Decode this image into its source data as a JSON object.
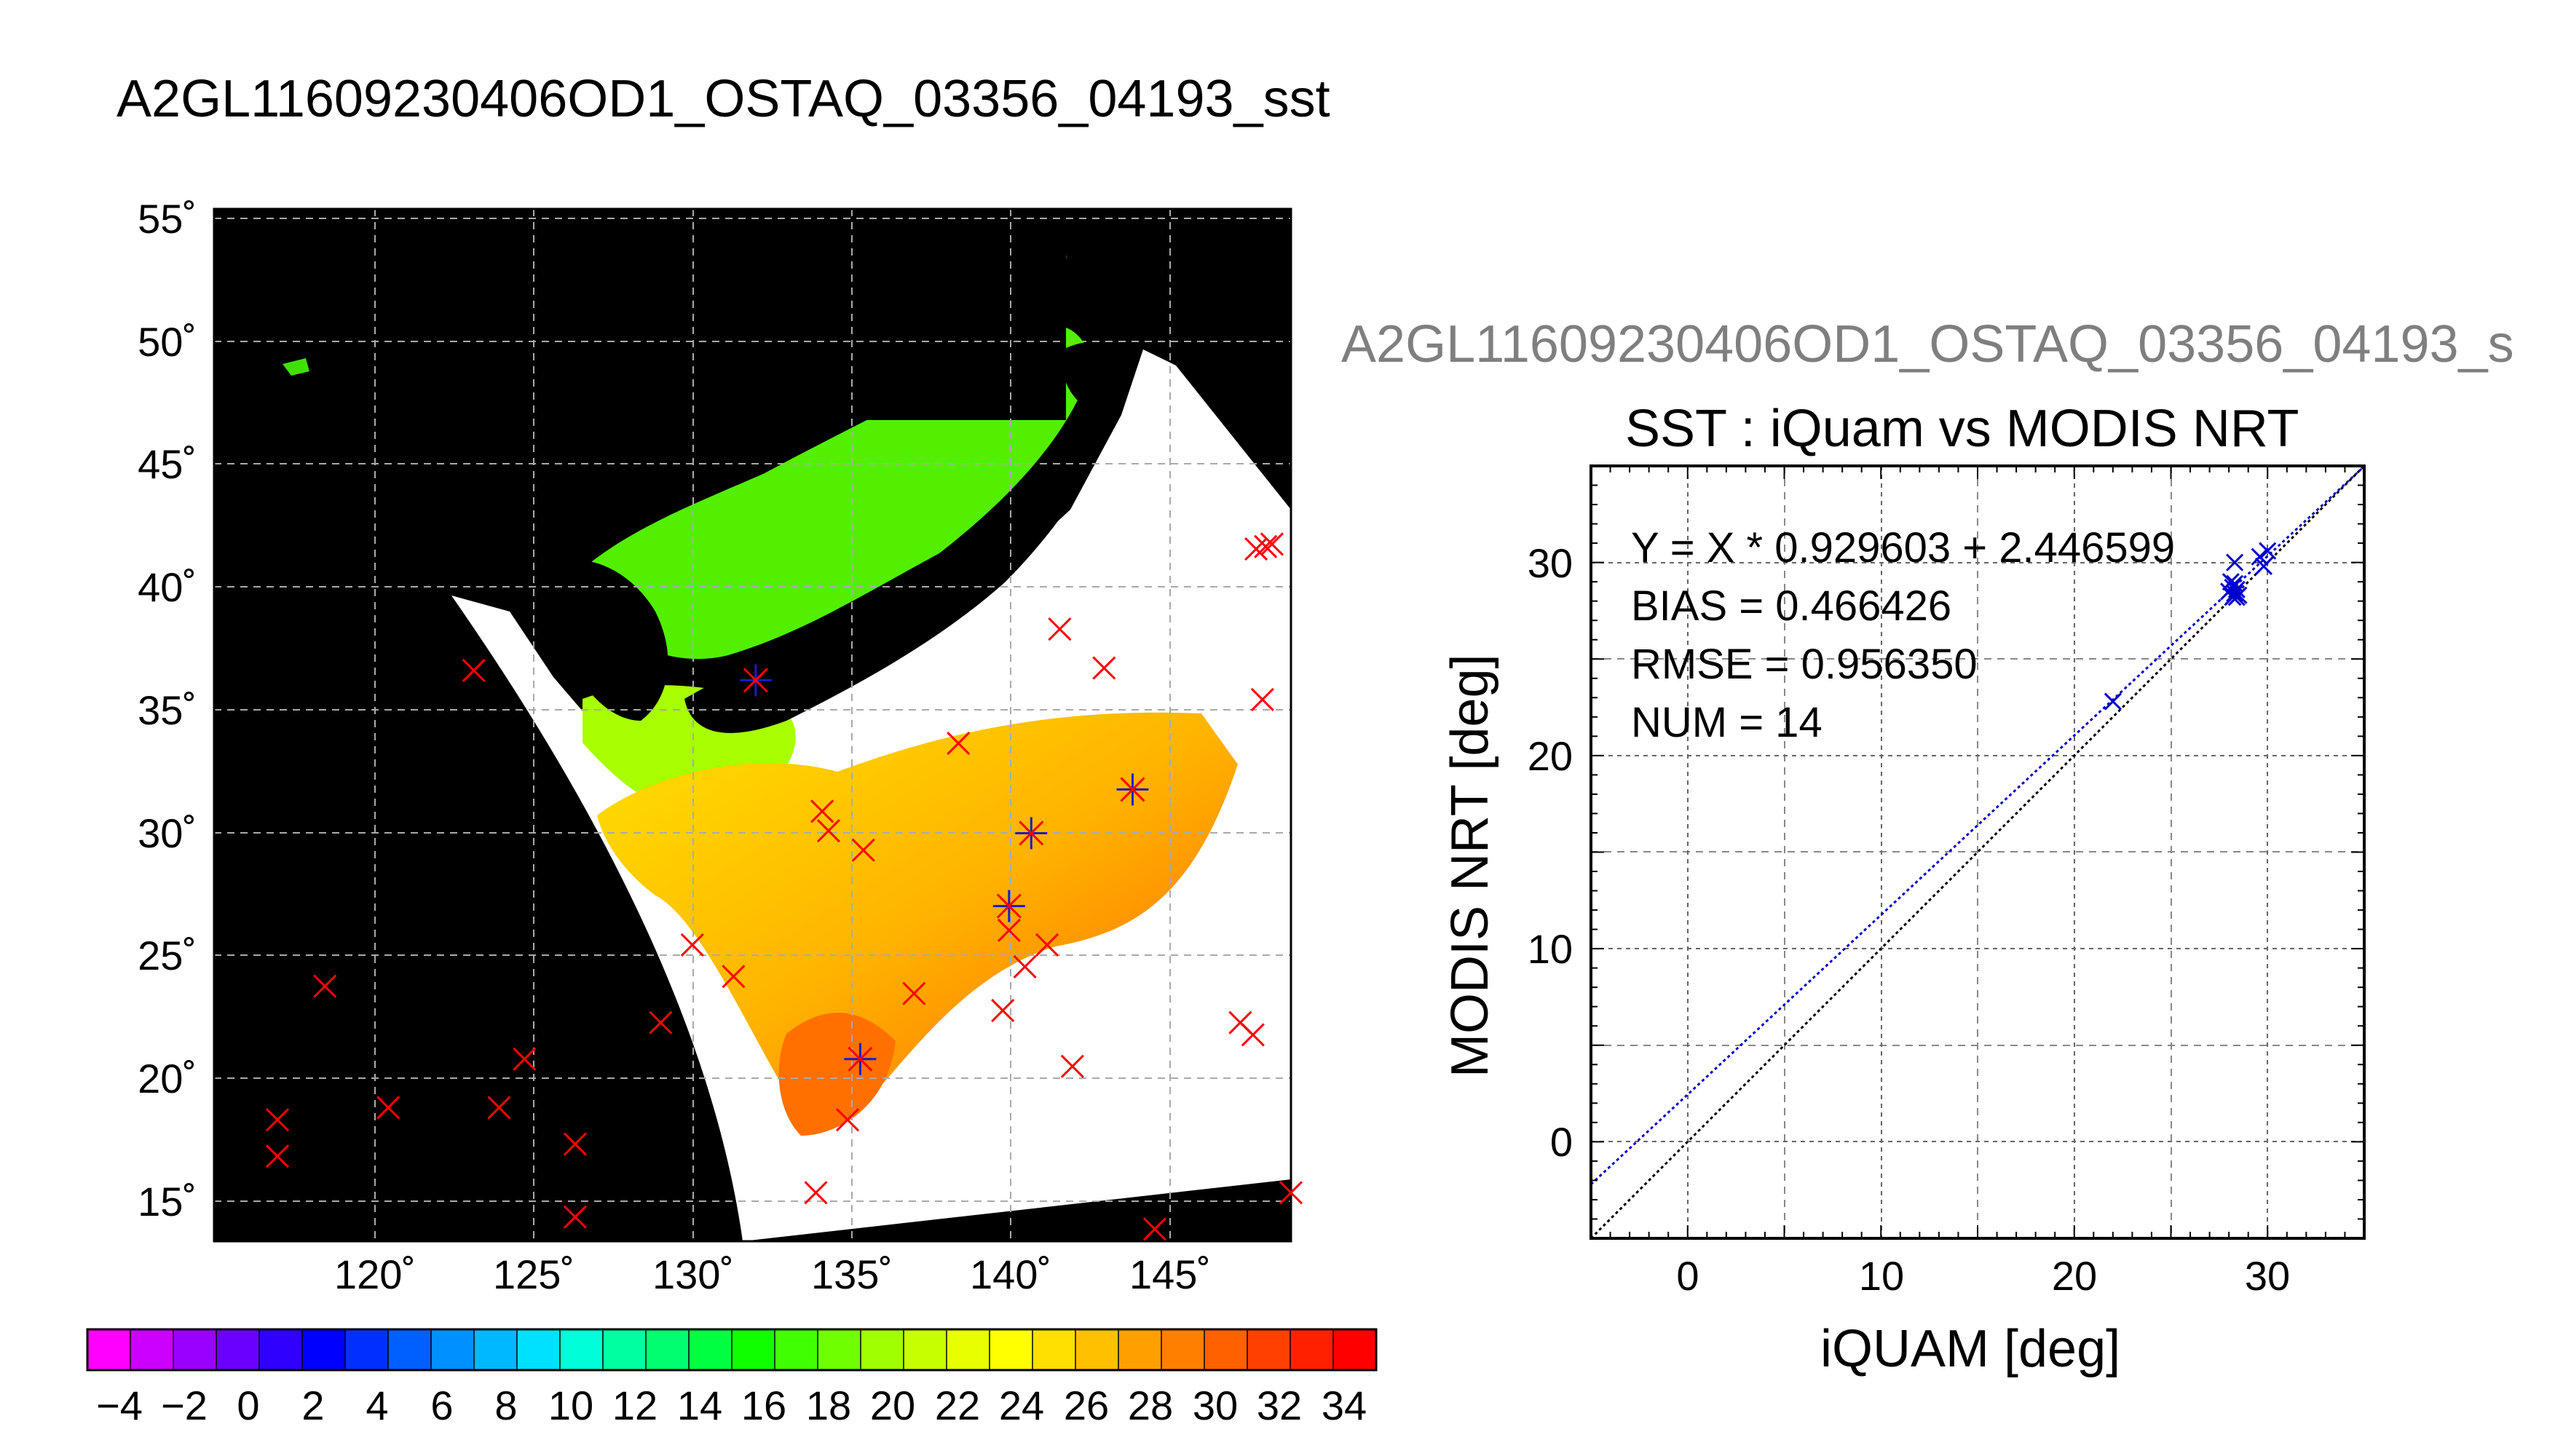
{
  "map": {
    "title": "A2GL11609230406OD1_OSTAQ_03356_04193_sst",
    "lat_ticks": [
      "55˚",
      "50˚",
      "45˚",
      "40˚",
      "35˚",
      "30˚",
      "25˚",
      "20˚",
      "15˚"
    ],
    "lat_values": [
      55,
      50,
      45,
      40,
      35,
      30,
      25,
      20,
      15
    ],
    "lon_ticks": [
      "120˚",
      "125˚",
      "130˚",
      "135˚",
      "140˚",
      "145˚"
    ],
    "lon_values": [
      120,
      125,
      130,
      135,
      140,
      145
    ],
    "extent": {
      "lon": [
        115,
        149
      ],
      "lat": [
        13.5,
        56
      ]
    },
    "colors": {
      "land_nodata": "#000000",
      "swath_clear": "#ffffff",
      "marker_outside": "#ff0000",
      "marker_match": "#1a1acc"
    },
    "colorbar": {
      "ticks": [
        "−4",
        "−2",
        "0",
        "2",
        "4",
        "6",
        "8",
        "10",
        "12",
        "14",
        "16",
        "18",
        "20",
        "22",
        "24",
        "26",
        "28",
        "30",
        "32",
        "34"
      ],
      "range": [
        -5,
        35
      ],
      "colors": [
        "#ff00ff",
        "#cc00ff",
        "#9900ff",
        "#6a00ff",
        "#3000ff",
        "#0000ff",
        "#0030ff",
        "#0060ff",
        "#0090ff",
        "#00b8ff",
        "#00e0ff",
        "#00ffd8",
        "#00ffa0",
        "#00ff70",
        "#00ff40",
        "#10ff00",
        "#40ff00",
        "#70ff00",
        "#a0ff00",
        "#c8ff00",
        "#e8ff00",
        "#ffff00",
        "#ffe000",
        "#ffc000",
        "#ffa000",
        "#ff8000",
        "#ff6000",
        "#ff4000",
        "#ff2000",
        "#ff0000"
      ]
    }
  },
  "chart_data": [
    {
      "type": "scatter",
      "supertitle": "A2GL11609230406OD1_OSTAQ_03356_04193_s",
      "title": "SST : iQuam vs MODIS NRT",
      "xlabel": "iQUAM [deg]",
      "ylabel": "MODIS NRT [deg]",
      "xlim": [
        -5,
        35
      ],
      "ylim": [
        -5,
        35
      ],
      "xticks": [
        0,
        10,
        20,
        30
      ],
      "yticks": [
        0,
        10,
        20,
        30
      ],
      "grid": true,
      "stats": {
        "fit": "Y = X * 0.929603 + 2.446599",
        "bias": "BIAS = 0.466426",
        "rmse": "RMSE = 0.956350",
        "num": "NUM = 14"
      },
      "fit_line": {
        "slope": 0.929603,
        "intercept": 2.446599,
        "color": "#0000cc"
      },
      "one_to_one_color": "#000000",
      "marker_color": "#0000cc",
      "x": [
        22.0,
        28.0,
        28.1,
        28.2,
        28.2,
        28.3,
        28.3,
        28.4,
        28.4,
        28.5,
        28.3,
        29.8,
        29.6,
        30.0
      ],
      "y": [
        22.8,
        28.5,
        29.0,
        28.7,
        28.2,
        28.9,
        28.4,
        28.6,
        28.2,
        28.3,
        30.0,
        29.8,
        30.3,
        30.6
      ]
    }
  ]
}
